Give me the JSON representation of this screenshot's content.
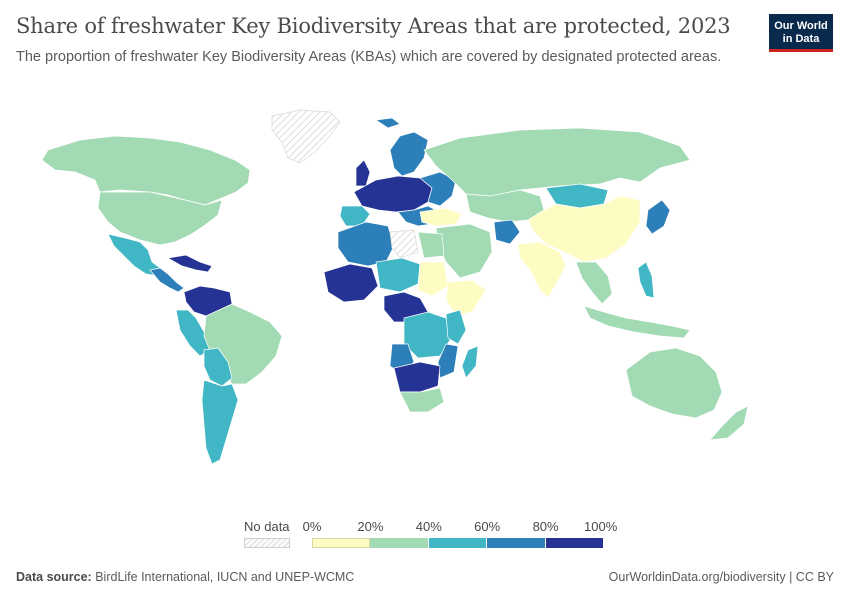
{
  "header": {
    "title": "Share of freshwater Key Biodiversity Areas that are protected, 2023",
    "subtitle": "The proportion of freshwater Key Biodiversity Areas (KBAs) which are covered by designated protected areas."
  },
  "logo": {
    "line1": "Our World",
    "line2": "in Data"
  },
  "legend": {
    "no_data_label": "No data",
    "ticks": [
      "0%",
      "20%",
      "40%",
      "60%",
      "80%",
      "100%"
    ],
    "bins": [
      {
        "from": 0,
        "to": 20,
        "color": "#fdfcc3"
      },
      {
        "from": 20,
        "to": 40,
        "color": "#a2dab4"
      },
      {
        "from": 40,
        "to": 60,
        "color": "#41b6c4"
      },
      {
        "from": 60,
        "to": 80,
        "color": "#2c7fb8"
      },
      {
        "from": 80,
        "to": 100,
        "color": "#253494"
      }
    ]
  },
  "footer": {
    "source_label": "Data source:",
    "source_text": "BirdLife International, IUCN and UNEP-WCMC",
    "url_text": "OurWorldinData.org/biodiversity | CC BY"
  },
  "colors": {
    "c0": "#fdfcc3",
    "c1": "#a2dab4",
    "c2": "#41b6c4",
    "c3": "#2c7fb8",
    "c4": "#253494",
    "nodata_hatch": "#e6e6e6",
    "border": "#ffffff"
  }
}
